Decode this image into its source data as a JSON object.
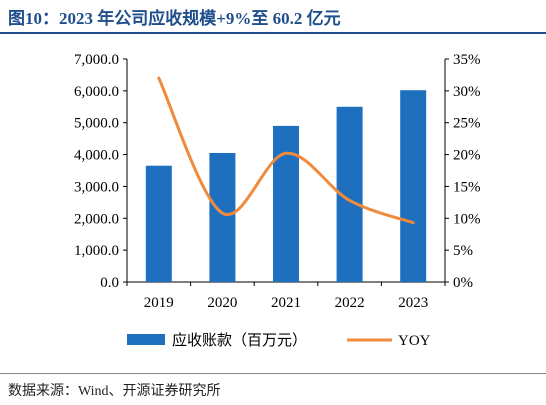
{
  "title": "图10：2023 年公司应收规模+9%至 60.2 亿元",
  "source": "数据来源：Wind、开源证券研究所",
  "colors": {
    "bar": "#1f6fbf",
    "line": "#f08a3c",
    "title": "#1f4e8c"
  },
  "chart_data": {
    "type": "bar",
    "categories": [
      "2019",
      "2020",
      "2021",
      "2022",
      "2023"
    ],
    "series": [
      {
        "name": "应收账款（百万元）",
        "type": "bar",
        "axis": "left",
        "values": [
          3650,
          4050,
          4900,
          5500,
          6020
        ]
      },
      {
        "name": "YOY",
        "type": "line",
        "axis": "right",
        "values": [
          32.0,
          10.8,
          20.2,
          12.8,
          9.3
        ]
      }
    ],
    "ylim_left": [
      0,
      7000
    ],
    "yticks_left": [
      "0.0",
      "1,000.0",
      "2,000.0",
      "3,000.0",
      "4,000.0",
      "5,000.0",
      "6,000.0",
      "7,000.0"
    ],
    "ylim_right": [
      0,
      35
    ],
    "yticks_right": [
      "0%",
      "5%",
      "10%",
      "15%",
      "20%",
      "25%",
      "30%",
      "35%"
    ],
    "legend_position": "bottom",
    "grid": false
  }
}
